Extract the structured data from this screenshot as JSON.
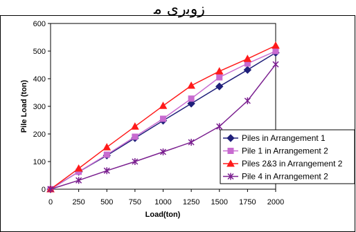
{
  "header_text": "ﺯﻭﺑﺭﻯ ﻣ",
  "chart_data": {
    "type": "line",
    "title": "",
    "xlabel": "Load(ton)",
    "ylabel": "Pile Load (ton)",
    "xlim": [
      0,
      2000
    ],
    "ylim": [
      0,
      600
    ],
    "x_ticks": [
      0,
      250,
      500,
      750,
      1000,
      1250,
      1500,
      1750,
      2000
    ],
    "y_ticks": [
      0,
      100,
      200,
      300,
      400,
      500,
      600
    ],
    "grid": false,
    "legend_position": "bottom-right",
    "x": [
      0,
      250,
      500,
      750,
      1000,
      1250,
      1500,
      1750,
      2000
    ],
    "series": [
      {
        "name": "Piles in Arrangement 1",
        "color": "#1f1f7a",
        "marker": "diamond",
        "values": [
          0,
          63,
          122,
          185,
          248,
          310,
          372,
          432,
          494
        ]
      },
      {
        "name": "Pile 1 in Arrangement 2",
        "color": "#c86bd0",
        "marker": "square",
        "values": [
          0,
          63,
          125,
          190,
          255,
          328,
          405,
          455,
          500
        ]
      },
      {
        "name": "Piles 2&3 in Arrangement 2",
        "color": "#ff1a1a",
        "marker": "triangle",
        "values": [
          0,
          75,
          152,
          227,
          302,
          375,
          427,
          472,
          520
        ]
      },
      {
        "name": "Pile 4 in Arrangement 2",
        "color": "#7a1f8f",
        "marker": "star",
        "values": [
          0,
          32,
          67,
          100,
          135,
          170,
          227,
          320,
          452
        ]
      }
    ]
  }
}
